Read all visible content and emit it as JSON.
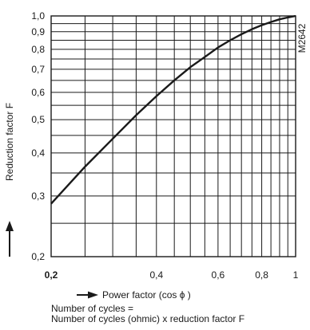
{
  "chart_data": {
    "type": "line",
    "xlabel": "Power factor (cos ϕ )",
    "ylabel": "Reduction factor F",
    "figure_code": "M2642",
    "x_scale": "log",
    "y_scale": "log",
    "xlim": [
      0.2,
      1
    ],
    "ylim": [
      0.2,
      1.0
    ],
    "grid": true,
    "x_tick_labels": [
      {
        "v": 0.2,
        "t": "0,2",
        "bold": true
      },
      {
        "v": 0.4,
        "t": "0,4",
        "bold": false
      },
      {
        "v": 0.6,
        "t": "0,6",
        "bold": false
      },
      {
        "v": 0.8,
        "t": "0,8",
        "bold": false
      },
      {
        "v": 1.0,
        "t": "1",
        "bold": false
      }
    ],
    "y_tick_labels": [
      {
        "v": 1.0,
        "t": "1,0"
      },
      {
        "v": 0.9,
        "t": "0,9"
      },
      {
        "v": 0.8,
        "t": "0,8"
      },
      {
        "v": 0.7,
        "t": "0,7"
      },
      {
        "v": 0.6,
        "t": "0,6"
      },
      {
        "v": 0.5,
        "t": "0,5"
      },
      {
        "v": 0.4,
        "t": "0,4"
      },
      {
        "v": 0.3,
        "t": "0,3"
      },
      {
        "v": 0.2,
        "t": "0,2"
      }
    ],
    "x": [
      0.2,
      0.25,
      0.3,
      0.35,
      0.4,
      0.45,
      0.5,
      0.55,
      0.6,
      0.65,
      0.7,
      0.75,
      0.8,
      0.85,
      0.9,
      0.95,
      1.0
    ],
    "y": [
      0.285,
      0.365,
      0.44,
      0.515,
      0.585,
      0.65,
      0.71,
      0.76,
      0.81,
      0.85,
      0.885,
      0.915,
      0.94,
      0.96,
      0.978,
      0.99,
      1.0
    ]
  },
  "note": {
    "line1": "Number of cycles =",
    "line2": "Number of cycles (ohmic) x reduction factor F"
  }
}
